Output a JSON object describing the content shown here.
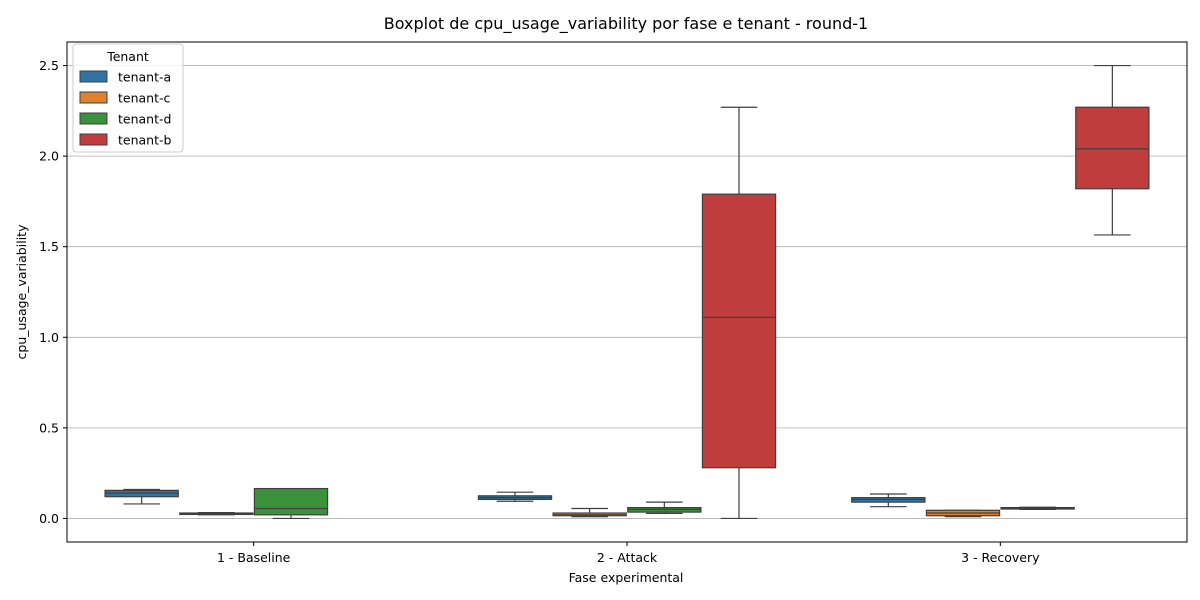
{
  "chart_data": {
    "type": "boxplot",
    "title": "Boxplot de cpu_usage_variability por fase e tenant - round-1",
    "xlabel": "Fase experimental",
    "ylabel": "cpu_usage_variability",
    "categories": [
      "1 - Baseline",
      "2 - Attack",
      "3 - Recovery"
    ],
    "ylim": [
      -0.13,
      2.63
    ],
    "yticks": [
      0.0,
      0.5,
      1.0,
      1.5,
      2.0,
      2.5
    ],
    "ytick_labels": [
      "0.0",
      "0.5",
      "1.0",
      "1.5",
      "2.0",
      "2.5"
    ],
    "grid": "horizontal",
    "legend": {
      "title": "Tenant",
      "placement": "top-left"
    },
    "series": [
      {
        "name": "tenant-a",
        "color": "#3274a1",
        "boxes": [
          {
            "category": "1 - Baseline",
            "whisker_low": 0.08,
            "q1": 0.12,
            "median": 0.14,
            "q3": 0.155,
            "whisker_high": 0.16
          },
          {
            "category": "2 - Attack",
            "whisker_low": 0.095,
            "q1": 0.105,
            "median": 0.115,
            "q3": 0.125,
            "whisker_high": 0.145
          },
          {
            "category": "3 - Recovery",
            "whisker_low": 0.065,
            "q1": 0.09,
            "median": 0.105,
            "q3": 0.115,
            "whisker_high": 0.135
          }
        ]
      },
      {
        "name": "tenant-c",
        "color": "#e1812c",
        "boxes": [
          {
            "category": "1 - Baseline",
            "whisker_low": 0.02,
            "q1": 0.022,
            "median": 0.025,
            "q3": 0.03,
            "whisker_high": 0.032
          },
          {
            "category": "2 - Attack",
            "whisker_low": 0.01,
            "q1": 0.015,
            "median": 0.02,
            "q3": 0.03,
            "whisker_high": 0.055
          },
          {
            "category": "3 - Recovery",
            "whisker_low": 0.01,
            "q1": 0.015,
            "median": 0.03,
            "q3": 0.045,
            "whisker_high": 0.045
          }
        ]
      },
      {
        "name": "tenant-d",
        "color": "#3a923a",
        "boxes": [
          {
            "category": "1 - Baseline",
            "whisker_low": 0.0,
            "q1": 0.02,
            "median": 0.055,
            "q3": 0.165,
            "whisker_high": 0.165
          },
          {
            "category": "2 - Attack",
            "whisker_low": 0.028,
            "q1": 0.035,
            "median": 0.05,
            "q3": 0.06,
            "whisker_high": 0.09
          },
          {
            "category": "3 - Recovery",
            "whisker_low": 0.05,
            "q1": 0.052,
            "median": 0.055,
            "q3": 0.06,
            "whisker_high": 0.062
          }
        ]
      },
      {
        "name": "tenant-b",
        "color": "#c03d3e",
        "boxes": [
          {
            "category": "1 - Baseline",
            "whisker_low": null,
            "q1": null,
            "median": null,
            "q3": null,
            "whisker_high": null
          },
          {
            "category": "2 - Attack",
            "whisker_low": 0.0,
            "q1": 0.28,
            "median": 1.11,
            "q3": 1.79,
            "whisker_high": 2.27
          },
          {
            "category": "3 - Recovery",
            "whisker_low": 1.565,
            "q1": 1.82,
            "median": 2.04,
            "q3": 2.27,
            "whisker_high": 2.5
          }
        ]
      }
    ]
  }
}
